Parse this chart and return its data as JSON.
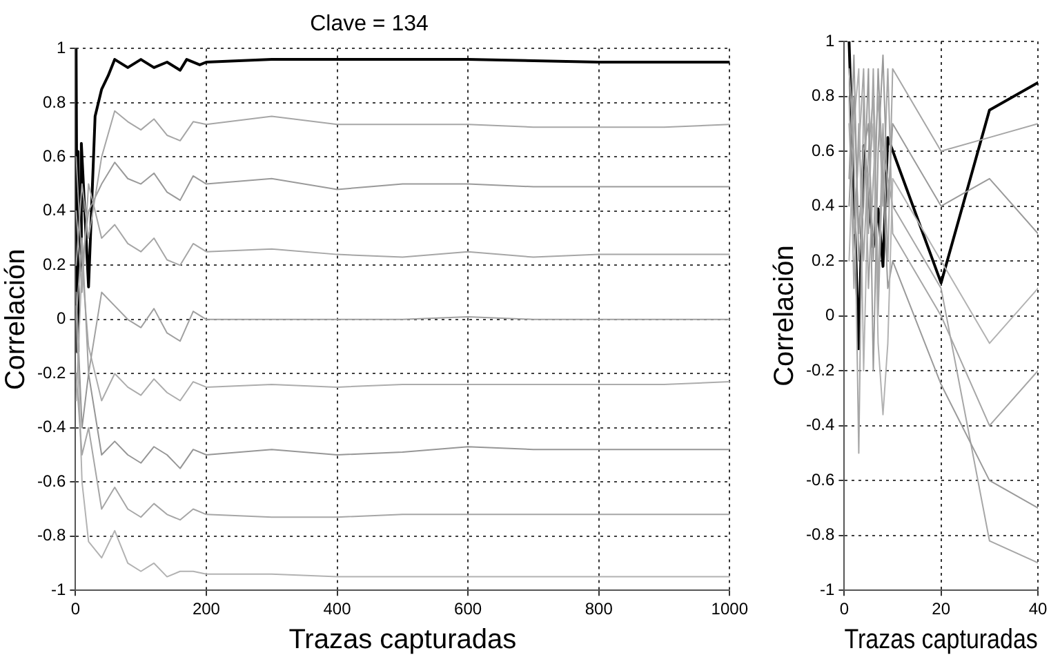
{
  "chart_data": [
    {
      "type": "line",
      "title": "Clave = 134",
      "xlabel": "Trazas capturadas",
      "ylabel": "Correlación",
      "xlim": [
        0,
        1000
      ],
      "xticks": [
        0,
        200,
        400,
        600,
        800,
        1000
      ],
      "ylim": [
        -1,
        1
      ],
      "yticks": [
        -1,
        -0.8,
        -0.6,
        -0.4,
        -0.2,
        0,
        0.2,
        0.4,
        0.6,
        0.8,
        1
      ],
      "grid": true,
      "legend": false,
      "marker": "none",
      "line_style": "solid",
      "x": [
        1,
        10,
        20,
        40,
        60,
        80,
        100,
        120,
        140,
        160,
        180,
        200,
        300,
        400,
        500,
        600,
        700,
        800,
        900,
        1000
      ],
      "series": [
        {
          "color": "#a6a6a6",
          "values": [
            0.2,
            0.5,
            0.3,
            0.6,
            0.77,
            0.73,
            0.7,
            0.74,
            0.68,
            0.66,
            0.73,
            0.72,
            0.75,
            0.72,
            0.72,
            0.72,
            0.71,
            0.71,
            0.71,
            0.72
          ]
        },
        {
          "color": "#9a9a9a",
          "values": [
            0.6,
            0.2,
            0.4,
            0.5,
            0.58,
            0.52,
            0.5,
            0.54,
            0.47,
            0.44,
            0.53,
            0.5,
            0.52,
            0.48,
            0.5,
            0.5,
            0.49,
            0.49,
            0.49,
            0.49
          ]
        },
        {
          "color": "#a6a6a6",
          "values": [
            0.4,
            0.1,
            0.5,
            0.3,
            0.35,
            0.28,
            0.25,
            0.3,
            0.22,
            0.2,
            0.28,
            0.25,
            0.26,
            0.24,
            0.23,
            0.25,
            0.23,
            0.24,
            0.24,
            0.24
          ]
        },
        {
          "color": "#a0a0a0",
          "values": [
            0.0,
            0.3,
            -0.2,
            0.1,
            0.05,
            0.0,
            -0.03,
            0.04,
            -0.05,
            -0.08,
            0.03,
            0.0,
            0.0,
            0.0,
            0.0,
            0.01,
            0.0,
            0.0,
            0.0,
            0.0
          ]
        },
        {
          "color": "#acacac",
          "values": [
            -0.3,
            0.2,
            -0.1,
            -0.3,
            -0.2,
            -0.25,
            -0.28,
            -0.22,
            -0.27,
            -0.3,
            -0.23,
            -0.25,
            -0.24,
            -0.25,
            -0.24,
            -0.24,
            -0.24,
            -0.24,
            -0.24,
            -0.23
          ]
        },
        {
          "color": "#969696",
          "values": [
            0.1,
            -0.4,
            -0.2,
            -0.5,
            -0.45,
            -0.5,
            -0.53,
            -0.47,
            -0.5,
            -0.55,
            -0.48,
            -0.5,
            -0.48,
            -0.5,
            -0.49,
            -0.47,
            -0.48,
            -0.48,
            -0.48,
            -0.48
          ]
        },
        {
          "color": "#a6a6a6",
          "values": [
            -0.2,
            -0.5,
            -0.4,
            -0.7,
            -0.62,
            -0.7,
            -0.73,
            -0.68,
            -0.72,
            -0.74,
            -0.7,
            -0.72,
            -0.73,
            -0.73,
            -0.72,
            -0.72,
            -0.72,
            -0.72,
            -0.72,
            -0.72
          ]
        },
        {
          "color": "#b2b2b2",
          "values": [
            0.05,
            -0.6,
            -0.82,
            -0.88,
            -0.78,
            -0.9,
            -0.93,
            -0.9,
            -0.95,
            -0.93,
            -0.93,
            -0.94,
            -0.94,
            -0.95,
            -0.95,
            -0.95,
            -0.95,
            -0.95,
            -0.95,
            -0.95
          ]
        },
        {
          "color": "#000000",
          "x": [
            1,
            3,
            4,
            6,
            7,
            8,
            9,
            20,
            30,
            40,
            50,
            60,
            80,
            100,
            120,
            140,
            160,
            170,
            190,
            200,
            300,
            400,
            600,
            800,
            1000
          ],
          "values": [
            1,
            -0.12,
            0.62,
            0.25,
            0.39,
            0.18,
            0.65,
            0.12,
            0.75,
            0.85,
            0.9,
            0.96,
            0.93,
            0.96,
            0.93,
            0.95,
            0.92,
            0.96,
            0.94,
            0.95,
            0.96,
            0.96,
            0.96,
            0.95,
            0.95
          ]
        }
      ]
    },
    {
      "type": "line",
      "xlabel": "Trazas capturadas",
      "ylabel": "Correlación",
      "xlim": [
        0,
        40
      ],
      "xticks": [
        0,
        20,
        40
      ],
      "ylim": [
        -1,
        1
      ],
      "yticks": [
        -1,
        -0.8,
        -0.6,
        -0.4,
        -0.2,
        0,
        0.2,
        0.4,
        0.6,
        0.8,
        1
      ],
      "grid": true,
      "legend": false,
      "marker": "none",
      "line_style": "solid",
      "x": [
        1,
        2,
        3,
        4,
        5,
        6,
        7,
        8,
        9,
        10,
        20,
        30,
        40
      ],
      "series": [
        {
          "color": "#a6a6a6",
          "values": [
            0.9,
            0.6,
            -0.5,
            0.8,
            0.3,
            0.9,
            0.1,
            0.7,
            0.2,
            0.9,
            0.6,
            0.65,
            0.7
          ]
        },
        {
          "color": "#9a9a9a",
          "values": [
            0.5,
            0.95,
            0.2,
            0.4,
            0.9,
            -0.2,
            0.6,
            0.95,
            0.4,
            0.7,
            0.4,
            0.5,
            0.3
          ]
        },
        {
          "color": "#b2b2b2",
          "values": [
            0.2,
            0.7,
            0.9,
            -0.2,
            0.5,
            0.7,
            -0.1,
            -0.36,
            -0.1,
            0.5,
            0.2,
            -0.1,
            0.1
          ]
        },
        {
          "color": "#a6a6a6",
          "values": [
            0.7,
            0.3,
            0.6,
            0.9,
            0.1,
            0.5,
            0.8,
            0.4,
            0.9,
            0.3,
            0.0,
            -0.4,
            -0.2
          ]
        },
        {
          "color": "#9a9a9a",
          "values": [
            0.4,
            0.8,
            0.3,
            0.6,
            0.7,
            0.2,
            0.9,
            0.5,
            0.1,
            0.2,
            -0.25,
            -0.6,
            -0.7
          ]
        },
        {
          "color": "#a6a6a6",
          "values": [
            0.8,
            0.1,
            0.7,
            0.2,
            0.6,
            0.8,
            0.0,
            0.6,
            0.5,
            0.4,
            0.1,
            -0.82,
            -0.9
          ]
        },
        {
          "color": "#000000",
          "values": [
            1,
            null,
            -0.12,
            0.62,
            null,
            0.25,
            0.39,
            0.18,
            0.65,
            null,
            0.12,
            0.75,
            0.85
          ]
        }
      ]
    }
  ]
}
